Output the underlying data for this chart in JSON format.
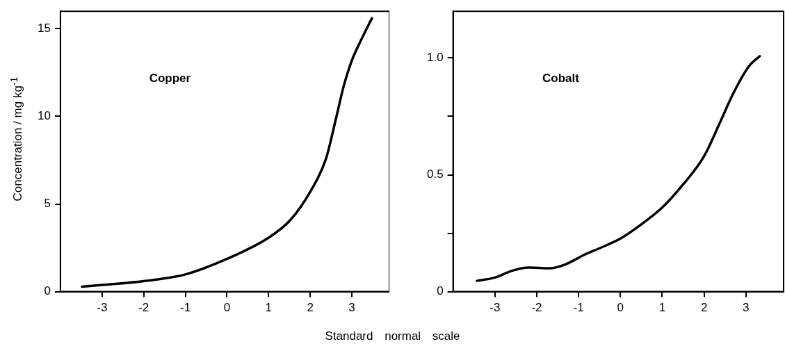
{
  "chart_data": [
    {
      "type": "line",
      "title": "Copper",
      "ylabel": "Concentration / mg kg$^{-1}$",
      "xlabel": "Standard normal scale",
      "color": "#000000",
      "xlim": [
        -4,
        3.9
      ],
      "xticks": [
        -3,
        -2,
        -1,
        0,
        1,
        2,
        3
      ],
      "ylim": [
        0,
        16
      ],
      "yticks": [
        0,
        5,
        10,
        15
      ],
      "grid": false,
      "legend": false,
      "marker": "none",
      "line_style": "solid",
      "x": [
        -3.48,
        -3,
        -2,
        -1,
        0,
        1,
        1.52,
        2,
        2.38,
        2.62,
        2.8,
        3,
        3.23,
        3.48
      ],
      "values": [
        0.28,
        0.38,
        0.6,
        0.98,
        1.87,
        3.08,
        4.08,
        5.7,
        7.6,
        9.9,
        11.7,
        13.2,
        14.4,
        15.6
      ]
    },
    {
      "type": "line",
      "title": "Cobalt",
      "color": "#000000",
      "xlim": [
        -4,
        3.9
      ],
      "xticks": [
        -3,
        -2,
        -1,
        0,
        1,
        2,
        3
      ],
      "ylim": [
        0,
        1.2
      ],
      "yticks": [
        0,
        {
          "value": 0.25,
          "label": null
        },
        0.5,
        {
          "value": 0.75,
          "label": null
        },
        {
          "value": 1,
          "label": "1.0"
        }
      ],
      "grid": false,
      "legend": false,
      "marker": "none",
      "line_style": "solid",
      "x": [
        -3.43,
        -3,
        -2.58,
        -2.2,
        -1.69,
        -1.31,
        -0.86,
        -0.48,
        0,
        0.47,
        1,
        1.49,
        2,
        2.37,
        2.69,
        3.07,
        3.33
      ],
      "values": [
        0.046,
        0.06,
        0.09,
        0.103,
        0.1,
        0.117,
        0.158,
        0.187,
        0.227,
        0.284,
        0.36,
        0.457,
        0.58,
        0.72,
        0.846,
        0.964,
        1.008
      ]
    }
  ]
}
